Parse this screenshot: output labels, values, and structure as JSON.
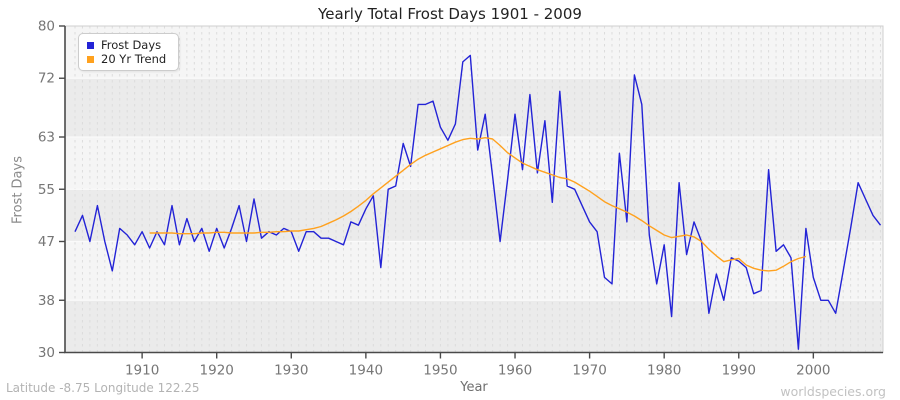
{
  "header": {
    "title": "Yearly Total Frost Days 1901 - 2009"
  },
  "legend": {
    "items": [
      {
        "label": "Frost Days",
        "color": "#2323d6"
      },
      {
        "label": "20 Yr Trend",
        "color": "#ffa11e"
      }
    ]
  },
  "axes": {
    "y_title": "Frost Days",
    "x_title": "Year",
    "y_ticks": [
      80,
      72,
      63,
      55,
      47,
      38,
      30
    ],
    "x_ticks": [
      1910,
      1920,
      1930,
      1940,
      1950,
      1960,
      1970,
      1980,
      1990,
      2000
    ]
  },
  "footer": {
    "left": "Latitude -8.75 Longitude 122.25",
    "right": "worldspecies.org"
  },
  "chart_data": {
    "type": "line",
    "title": "Yearly Total Frost Days 1901 - 2009",
    "xlabel": "Year",
    "ylabel": "Frost Days",
    "xlim": [
      1899.6,
      2009.3
    ],
    "ylim": [
      30,
      80
    ],
    "grid": "yearly dashed vertical lines, alternating horizontal bands",
    "legend_position": "top-left",
    "series": [
      {
        "name": "Frost Days",
        "color": "#2323d6",
        "start_year": 1901,
        "values": [
          48.5,
          51,
          47,
          52.5,
          47,
          42.5,
          49,
          48,
          46.5,
          48.5,
          46,
          48.5,
          46.5,
          52.5,
          46.5,
          50.5,
          47,
          49,
          45.5,
          49,
          46,
          49,
          52.5,
          47,
          53.5,
          47.5,
          48.5,
          48,
          49,
          48.5,
          45.5,
          48.5,
          48.5,
          47.5,
          47.5,
          47,
          46.5,
          50,
          49.5,
          52,
          54,
          43,
          55,
          55.5,
          62,
          58.5,
          68,
          68,
          68.5,
          64.5,
          62.5,
          65,
          74.5,
          75.5,
          61,
          66.5,
          57,
          47,
          56.5,
          66.5,
          58,
          69.5,
          57.5,
          65.5,
          53,
          70,
          55.5,
          55,
          52.5,
          50,
          48.5,
          41.5,
          40.5,
          60.5,
          50,
          72.5,
          68,
          48,
          40.5,
          46.5,
          35.5,
          56,
          45,
          50,
          47,
          36,
          42,
          38,
          44.5,
          44,
          43,
          39,
          39.5,
          58,
          45.5,
          46.5,
          44.5,
          30.5,
          49,
          41.5,
          38,
          38,
          36,
          42.5,
          49,
          56,
          53.5,
          51,
          49.5
        ]
      },
      {
        "name": "20 Yr Trend",
        "color": "#ffa11e",
        "start_year": 1911,
        "values": [
          48.3,
          48.3,
          48.3,
          48.3,
          48.2,
          48.2,
          48.2,
          48.3,
          48.3,
          48.4,
          48.4,
          48.3,
          48.3,
          48.3,
          48.3,
          48.4,
          48.4,
          48.5,
          48.5,
          48.6,
          48.6,
          48.8,
          49.0,
          49.3,
          49.8,
          50.3,
          50.9,
          51.6,
          52.4,
          53.3,
          54.3,
          55.2,
          56.1,
          57.0,
          57.9,
          58.8,
          59.6,
          60.2,
          60.7,
          61.2,
          61.7,
          62.2,
          62.6,
          62.8,
          62.7,
          62.9,
          62.7,
          61.7,
          60.6,
          59.8,
          59.0,
          58.5,
          58.0,
          57.6,
          57.2,
          56.8,
          56.6,
          56.1,
          55.4,
          54.7,
          53.9,
          53.1,
          52.5,
          52.0,
          51.5,
          50.9,
          50.2,
          49.4,
          48.7,
          48.0,
          47.6,
          47.8,
          48.0,
          47.7,
          47.0,
          45.8,
          44.8,
          43.9,
          44.2,
          44.4,
          43.4,
          42.9,
          42.6,
          42.5,
          42.6,
          43.2,
          43.9,
          44.4,
          44.7
        ]
      }
    ]
  }
}
